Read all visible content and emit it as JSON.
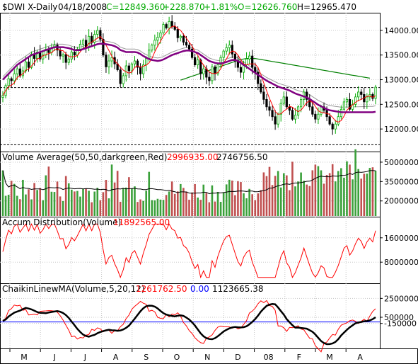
{
  "chart_data": [
    {
      "type": "candlestick",
      "header": {
        "symbol": "$DWI X-Daily",
        "date": "04/18/2008",
        "close": "C=12849.360",
        "change": "+228.870",
        "pct": "+1.81%",
        "open": "O=12626.760",
        "high": "H=12965.470"
      },
      "yticks": [
        "14000.00",
        "13500.00",
        "13000.00",
        "12500.00",
        "12000.00"
      ],
      "ylim": [
        11600,
        14300
      ],
      "series": [
        {
          "name": "price",
          "values": [
            12680,
            12880,
            13020,
            12980,
            13120,
            13220,
            13080,
            13180,
            13360,
            13250,
            13520,
            13430,
            13560,
            13420,
            13500,
            13620,
            13550,
            13650,
            13700,
            13600,
            13480,
            13510,
            13350,
            13420,
            13560,
            13500,
            13620,
            13720,
            13800,
            13650,
            13880,
            13760,
            13920,
            14000,
            13820,
            13500,
            13260,
            13380,
            13450,
            13320,
            13200,
            12920,
            13080,
            13280,
            13180,
            13320,
            13380,
            13250,
            13120,
            13300,
            13430,
            13600,
            13700,
            13800,
            13860,
            13950,
            14120,
            14050,
            14180,
            14080,
            14020,
            13850,
            13880,
            13760,
            13700,
            13620,
            13450,
            13300,
            13400,
            13120,
            13220,
            13050,
            12980,
            13260,
            13120,
            13300,
            13450,
            13580,
            13650,
            13700,
            13520,
            13380,
            13250,
            13150,
            13300,
            13420,
            13480,
            13250,
            13150,
            12920,
            12750,
            12600,
            12450,
            12380,
            12250,
            12100,
            12300,
            12520,
            12650,
            12450,
            12380,
            12200,
            12280,
            12450,
            12600,
            12750,
            12600,
            12450,
            12300,
            12200,
            12300,
            12450,
            12380,
            12250,
            12100,
            12000,
            12100,
            12250,
            12400,
            12550,
            12600,
            12400,
            12500,
            12650,
            12750,
            12700,
            12550,
            12650,
            12700,
            12620,
            12849
          ]
        },
        {
          "name": "ma50",
          "values": [
            13000,
            13060,
            13120,
            13180,
            13240,
            13300,
            13340,
            13380,
            13420,
            13460,
            13500,
            13520,
            13540,
            13560,
            13580,
            13600,
            13620,
            13640,
            13660,
            13660,
            13660,
            13660,
            13650,
            13640,
            13620,
            13600,
            13600,
            13600,
            13620,
            13640,
            13660,
            13680,
            13700,
            13720,
            13730,
            13730,
            13720,
            13710,
            13700,
            13680,
            13650,
            13600,
            13580,
            13560,
            13560,
            13560,
            13560,
            13550,
            13520,
            13480,
            13450,
            13420,
            13400,
            13390,
            13380,
            13390,
            13410,
            13440,
            13470,
            13500,
            13520,
            13540,
            13560,
            13580,
            13590,
            13590,
            13580,
            13560,
            13540,
            13500,
            13460,
            13420,
            13380,
            13360,
            13340,
            13330,
            13330,
            13340,
            13360,
            13380,
            13400,
            13400,
            13380,
            13340,
            13300,
            13260,
            13220,
            13180,
            13140,
            13100,
            13060,
            13020,
            12980,
            12950,
            12920,
            12890,
            12860,
            12840,
            12820,
            12800,
            12780,
            12750,
            12720,
            12700,
            12680,
            12660,
            12640,
            12610,
            12570,
            12530,
            12490,
            12460,
            12430,
            12400,
            12380,
            12370,
            12360,
            12350,
            12340,
            12340,
            12340,
            12340,
            12340,
            12340,
            12340,
            12340,
            12340,
            12340,
            12340,
            12340,
            12350
          ]
        },
        {
          "name": "ma200",
          "values": [
            null,
            null,
            null,
            null,
            null,
            null,
            null,
            null,
            null,
            null,
            null,
            null,
            null,
            null,
            null,
            null,
            null,
            null,
            null,
            null,
            null,
            null,
            null,
            null,
            null,
            null,
            null,
            null,
            null,
            null,
            null,
            null,
            null,
            null,
            null,
            null,
            null,
            null,
            null,
            null,
            null,
            null,
            null,
            null,
            null,
            null,
            null,
            null,
            null,
            null,
            null,
            null,
            null,
            null,
            null,
            null,
            null,
            null,
            null,
            null,
            null,
            null,
            12990,
            13010,
            13030,
            13050,
            13070,
            13090,
            13110,
            13130,
            13150,
            13170,
            13190,
            13210,
            13230,
            13250,
            13270,
            13290,
            13310,
            13330,
            13350,
            13370,
            13390,
            13410,
            13420,
            13430,
            13430,
            13430,
            13430,
            13420,
            13410,
            13400,
            13390,
            13380,
            13370,
            13360,
            13350,
            13340,
            13330,
            13320,
            13310,
            13300,
            13290,
            13280,
            13270,
            13260,
            13250,
            13240,
            13230,
            13220,
            13210,
            13200,
            13190,
            13180,
            13170,
            13160,
            13150,
            13140,
            13130,
            13120,
            13110,
            13100,
            13090,
            13080,
            13070,
            13060,
            13050,
            13040,
            13030
          ]
        }
      ],
      "hlines": [
        12840,
        11680
      ]
    },
    {
      "type": "bar",
      "title_parts": {
        "label": "Volume Average(50,50,darkgreen,Red)",
        "v1": "2996935.00",
        "v2": "2746756.50"
      },
      "yticks": [
        "5000000",
        "3500000",
        "2000000"
      ],
      "ylim": [
        1000000,
        5600000
      ]
    },
    {
      "type": "line",
      "title_parts": {
        "label": "Accum Distribution(Volume)",
        "v1": "11892565.00"
      },
      "yticks": [
        "16000000",
        "8000000"
      ],
      "ylim": [
        2000000,
        22000000
      ]
    },
    {
      "type": "line",
      "title_parts": {
        "label": "ChaikinLinewMA(Volume,5,20,12)",
        "v1": "1261762.50",
        "v2": "0.00",
        "v3": "1123665.38"
      },
      "yticks": [
        "2500000",
        "500000",
        "-150000"
      ],
      "ylim": [
        -2500000,
        3800000
      ]
    }
  ],
  "x_axis": {
    "months": [
      "M",
      "J",
      "J",
      "A",
      "S",
      "O",
      "N",
      "D",
      "08",
      "F",
      "M",
      "A"
    ]
  },
  "colors": {
    "up": "#00aa00",
    "down": "#000000",
    "ma_short": "#ff0000",
    "ma50": "#800080",
    "ma200": "#008000",
    "ma_gray": "#999999",
    "header_green": "#00aa00",
    "value_red": "#ff0000",
    "value_blue": "#0000ff"
  }
}
